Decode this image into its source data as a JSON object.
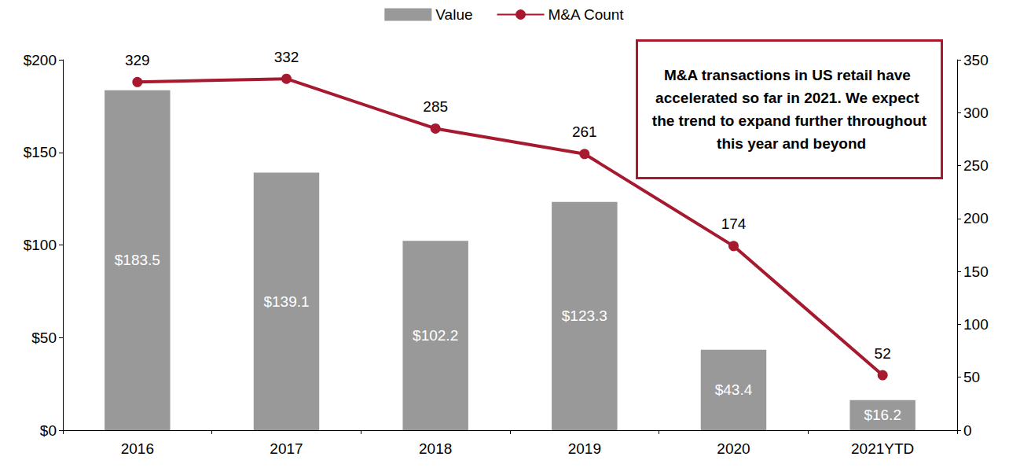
{
  "chart_data": {
    "type": "bar",
    "categories": [
      "2016",
      "2017",
      "2018",
      "2019",
      "2020",
      "2021YTD"
    ],
    "series": [
      {
        "name": "Value",
        "type": "bar",
        "color": "#999999",
        "values": [
          183.5,
          139.1,
          102.2,
          123.3,
          43.4,
          16.2
        ],
        "value_labels": [
          "$183.5",
          "$139.1",
          "$102.2",
          "$123.3",
          "$43.4",
          "$16.2"
        ]
      },
      {
        "name": "M&A Count",
        "type": "line",
        "axis": "y2",
        "color": "#A6192E",
        "marker": "circle",
        "values": [
          329,
          332,
          285,
          261,
          174,
          52
        ]
      }
    ],
    "ylim": [
      0,
      200
    ],
    "yticks": [
      {
        "value": 0,
        "label": "$0"
      },
      {
        "value": 50,
        "label": "$50"
      },
      {
        "value": 100,
        "label": "$100"
      },
      {
        "value": 150,
        "label": "$150"
      },
      {
        "value": 200,
        "label": "$200"
      }
    ],
    "y2lim": [
      0,
      350
    ],
    "y2ticks": [
      0,
      50,
      100,
      150,
      200,
      250,
      300,
      350
    ],
    "grid": false,
    "legend": "top",
    "data_labels": true,
    "annotations": [
      "M&A transactions in US retail have accelerated so far in 2021. We expect the trend to expand further throughout this year and beyond"
    ]
  }
}
